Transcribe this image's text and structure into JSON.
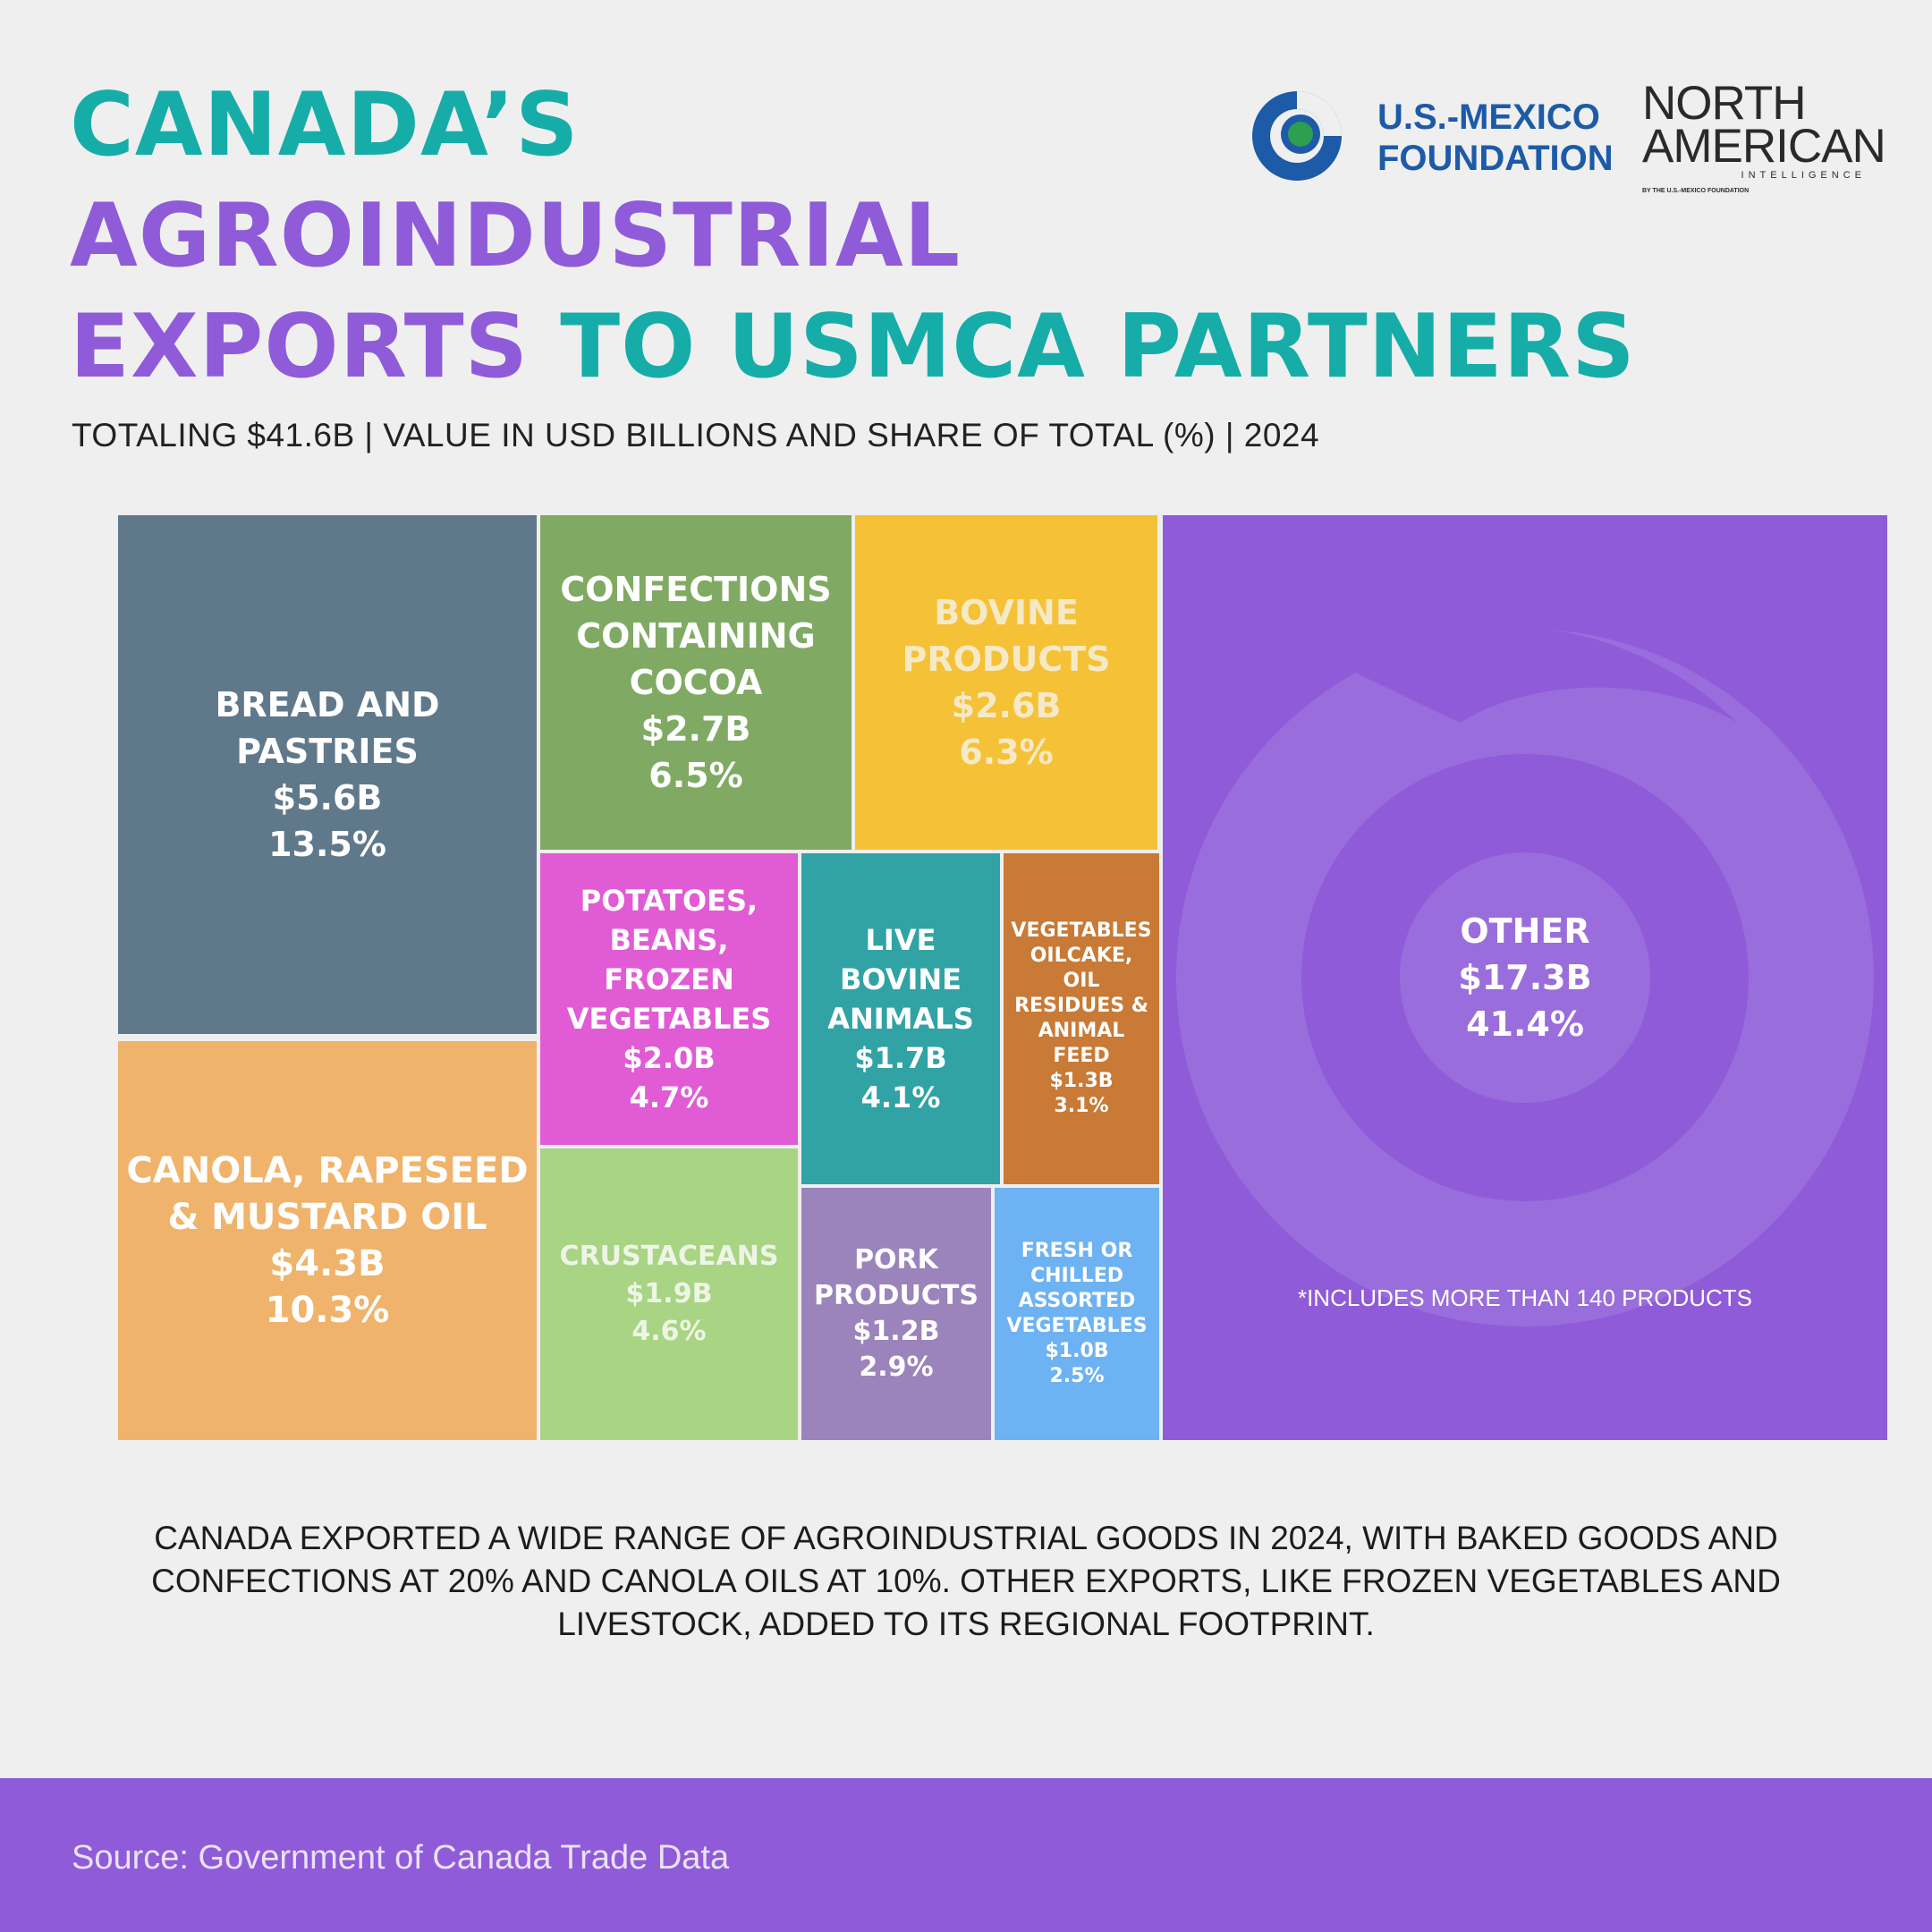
{
  "title": {
    "line1": "CANADA’S",
    "line2": "AGROINDUSTRIAL",
    "line3a": "EXPORTS",
    "line3b": " TO USMCA PARTNERS"
  },
  "subtitle": "TOTALING $41.6B | VALUE IN USD BILLIONS AND SHARE OF TOTAL (%) | 2024",
  "logos": {
    "usmf_line1": "U.S.-MEXICO",
    "usmf_line2": "FOUNDATION",
    "nai_line1": "NORTH",
    "nai_line2": "AMERICAN",
    "nai_line3": "INTELLIGENCE",
    "nai_line4": "BY THE U.S.-MEXICO FOUNDATION"
  },
  "colors": {
    "teal": "#16ada8",
    "purple": "#8f5bd9",
    "usmf_blue": "#1d5aa8"
  },
  "chart_data": {
    "type": "treemap",
    "total": "$41.6B",
    "unit": "USD billions",
    "items": [
      {
        "label": "BREAD AND PASTRIES",
        "value": 5.6,
        "value_label": "$5.6B",
        "share": "13.5%",
        "color": "#5f798b"
      },
      {
        "label": "CANOLA, RAPESEED\n& MUSTARD OIL",
        "value": 4.3,
        "value_label": "$4.3B",
        "share": "10.3%",
        "color": "#f0b36b"
      },
      {
        "label": "CONFECTIONS\nCONTAINING\nCOCOA",
        "value": 2.7,
        "value_label": "$2.7B",
        "share": "6.5%",
        "color": "#80aa63"
      },
      {
        "label": "BOVINE\nPRODUCTS",
        "value": 2.6,
        "value_label": "$2.6B",
        "share": "6.3%",
        "color": "#f5c136"
      },
      {
        "label": "POTATOES,\nBEANS,\nFROZEN\nVEGETABLES",
        "value": 2.0,
        "value_label": "$2.0B",
        "share": "4.7%",
        "color": "#e15cd4"
      },
      {
        "label": "CRUSTACEANS",
        "value": 1.9,
        "value_label": "$1.9B",
        "share": "4.6%",
        "color": "#a8d483"
      },
      {
        "label": "LIVE\nBOVINE\nANIMALS",
        "value": 1.7,
        "value_label": "$1.7B",
        "share": "4.1%",
        "color": "#31a3a4"
      },
      {
        "label": "VEGETABLES\nOILCAKE,\nOIL\nRESIDUES &\nANIMAL\nFEED",
        "value": 1.3,
        "value_label": "$1.3B",
        "share": "3.1%",
        "color": "#c87a36"
      },
      {
        "label": "PORK\nPRODUCTS",
        "value": 1.2,
        "value_label": "$1.2B",
        "share": "2.9%",
        "color": "#9b83bb"
      },
      {
        "label": "FRESH OR\nCHILLED\nASSORTED\nVEGETABLES",
        "value": 1.0,
        "value_label": "$1.0B",
        "share": "2.5%",
        "color": "#6db2f2"
      },
      {
        "label": "OTHER",
        "value": 17.3,
        "value_label": "$17.3B",
        "share": "41.4%",
        "color": "#8f5bd9",
        "note": "*INCLUDES MORE THAN 140 PRODUCTS"
      }
    ]
  },
  "caption": "CANADA EXPORTED A WIDE RANGE OF AGROINDUSTRIAL GOODS IN 2024, WITH BAKED GOODS AND CONFECTIONS AT 20% AND CANOLA OILS AT 10%. OTHER EXPORTS, LIKE FROZEN VEGETABLES AND LIVESTOCK, ADDED TO ITS REGIONAL FOOTPRINT.",
  "source": "Source: Government of Canada Trade Data"
}
